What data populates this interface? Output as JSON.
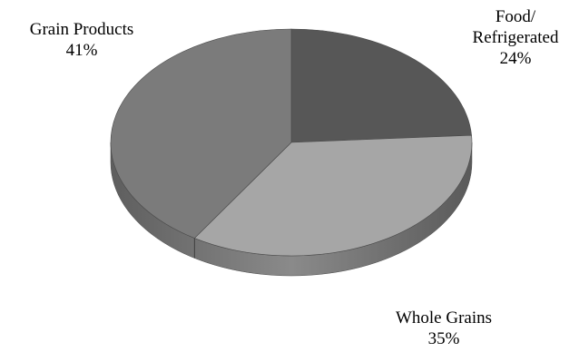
{
  "chart_data": {
    "type": "pie",
    "title": "",
    "slices": [
      {
        "label": "Food/ Refrigerated",
        "label_lines": [
          "Food/",
          "Refrigerated"
        ],
        "value": 24,
        "value_label": "24%",
        "color": "#575757"
      },
      {
        "label": "Whole Grains",
        "label_lines": [
          "Whole Grains"
        ],
        "value": 35,
        "value_label": "35%",
        "color": "#a6a6a6"
      },
      {
        "label": "Grain Products",
        "label_lines": [
          "Grain Products"
        ],
        "value": 41,
        "value_label": "41%",
        "color": "#7b7b7b"
      }
    ],
    "style": "3d",
    "legend": "none"
  }
}
